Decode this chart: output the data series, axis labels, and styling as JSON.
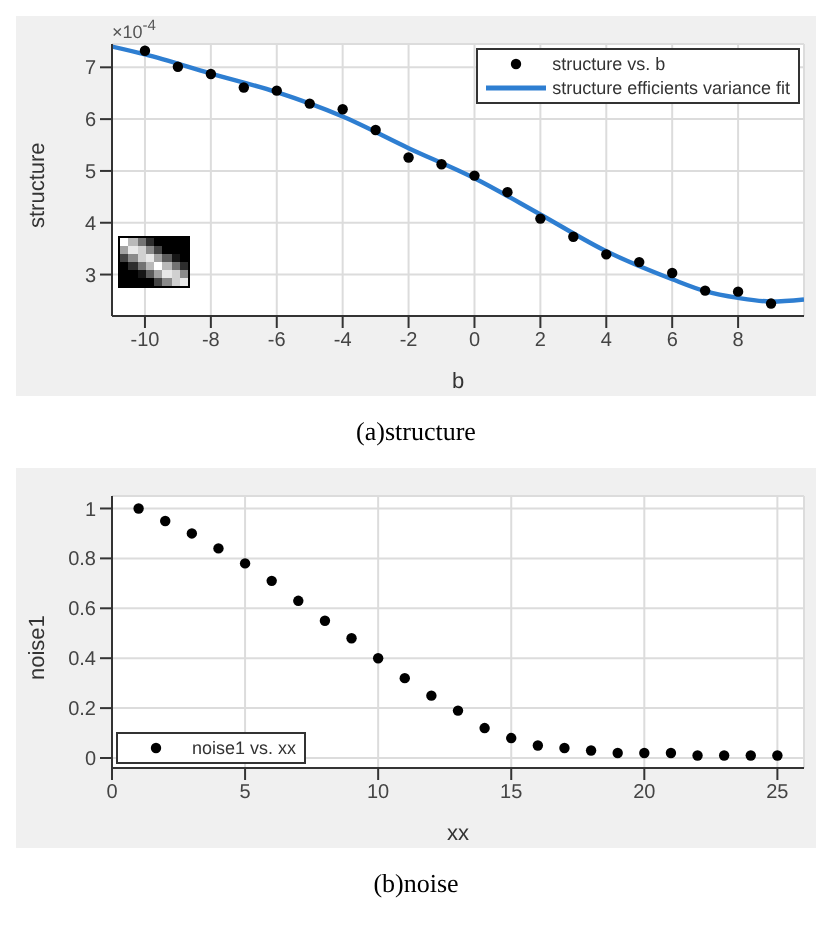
{
  "chart_data": [
    {
      "type": "scatter",
      "xlabel": "b",
      "ylabel": "structure",
      "xlim": [
        -11,
        10
      ],
      "ylim": [
        2.2,
        7.45
      ],
      "xticks": [
        -10,
        -8,
        -6,
        -4,
        -2,
        0,
        2,
        4,
        6,
        8
      ],
      "yticks": [
        3,
        4,
        5,
        6,
        7
      ],
      "grid": true,
      "legend": "top right",
      "annotations": [
        "×10$^{-4}$",
        "(a)structure"
      ],
      "series": [
        {
          "name": "structure vs. b",
          "marker": "circle",
          "color": "#000000",
          "x": [
            -10,
            -9,
            -8,
            -7,
            -6,
            -5,
            -4,
            -3,
            -2,
            -1,
            0,
            1,
            2,
            3,
            4,
            5,
            6,
            7,
            8,
            9
          ],
          "values": [
            7.32,
            7.01,
            6.87,
            6.61,
            6.55,
            6.3,
            6.19,
            5.79,
            5.26,
            5.13,
            4.91,
            4.59,
            4.08,
            3.73,
            3.39,
            3.24,
            3.03,
            2.69,
            2.67,
            2.44
          ]
        },
        {
          "name": "structure efficients variance fit",
          "type": "line",
          "marker": "none",
          "color": "#2e7ed1",
          "x": [
            -11,
            -10,
            -8,
            -6,
            -4,
            -2,
            0,
            2,
            4,
            6,
            7,
            8,
            9,
            10
          ],
          "values": [
            7.4,
            7.25,
            6.88,
            6.52,
            6.05,
            5.44,
            4.86,
            4.16,
            3.45,
            2.91,
            2.68,
            2.55,
            2.48,
            2.52
          ]
        }
      ]
    },
    {
      "type": "scatter",
      "xlabel": "xx",
      "ylabel": "noise1",
      "xlim": [
        0,
        26
      ],
      "ylim": [
        -0.04,
        1.05
      ],
      "xticks": [
        0,
        5,
        10,
        15,
        20,
        25
      ],
      "yticks": [
        0,
        0.2,
        0.4,
        0.6,
        0.8,
        1
      ],
      "grid": true,
      "legend": "bottom left",
      "annotations": [
        "(b)noise"
      ],
      "series": [
        {
          "name": "noise1 vs. xx",
          "marker": "circle",
          "color": "#000000",
          "x": [
            1,
            2,
            3,
            4,
            5,
            6,
            7,
            8,
            9,
            10,
            11,
            12,
            13,
            14,
            15,
            16,
            17,
            18,
            19,
            20,
            21,
            22,
            23,
            24,
            25
          ],
          "values": [
            1.0,
            0.95,
            0.9,
            0.84,
            0.78,
            0.71,
            0.63,
            0.55,
            0.48,
            0.4,
            0.32,
            0.25,
            0.19,
            0.12,
            0.08,
            0.05,
            0.04,
            0.03,
            0.02,
            0.02,
            0.02,
            0.01,
            0.01,
            0.01,
            0.01
          ]
        }
      ]
    }
  ]
}
